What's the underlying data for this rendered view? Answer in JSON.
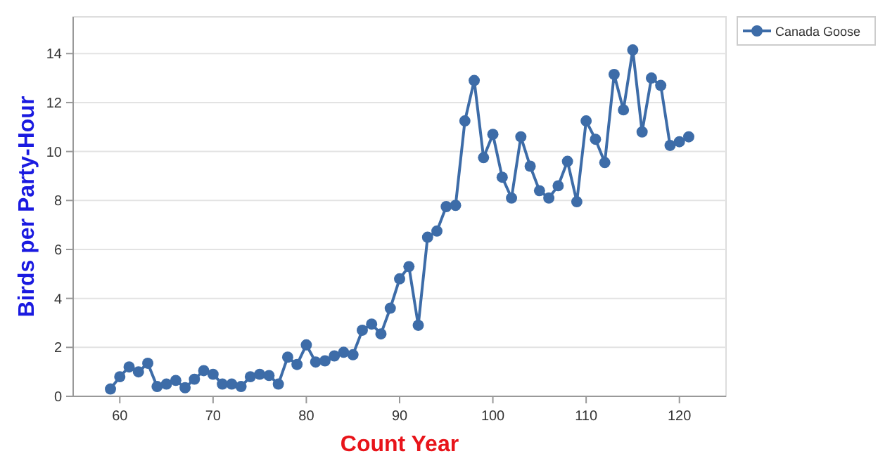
{
  "chart_data": {
    "type": "line",
    "xlabel": "Count Year",
    "ylabel": "Birds per Party-Hour",
    "x": [
      59,
      60,
      61,
      62,
      63,
      64,
      65,
      66,
      67,
      68,
      69,
      70,
      71,
      72,
      73,
      74,
      75,
      76,
      77,
      78,
      79,
      80,
      81,
      82,
      83,
      84,
      85,
      86,
      87,
      88,
      89,
      90,
      91,
      92,
      93,
      94,
      95,
      96,
      97,
      98,
      99,
      100,
      101,
      102,
      103,
      104,
      105,
      106,
      107,
      108,
      109,
      110,
      111,
      112,
      113,
      114,
      115,
      116,
      117,
      118,
      119,
      120,
      121
    ],
    "series": [
      {
        "name": "Canada Goose",
        "color": "#3d6ca8",
        "values": [
          0.3,
          0.8,
          1.2,
          1.0,
          1.35,
          0.4,
          0.5,
          0.65,
          0.35,
          0.7,
          1.05,
          0.9,
          0.5,
          0.5,
          0.4,
          0.8,
          0.9,
          0.85,
          0.5,
          1.6,
          1.3,
          2.1,
          1.4,
          1.45,
          1.65,
          1.8,
          1.7,
          2.7,
          2.95,
          2.55,
          3.6,
          4.8,
          5.3,
          2.9,
          6.5,
          6.75,
          7.75,
          7.8,
          11.25,
          12.9,
          9.75,
          10.7,
          8.95,
          8.1,
          10.6,
          9.4,
          8.4,
          8.1,
          8.6,
          9.6,
          7.95,
          11.25,
          10.5,
          9.55,
          13.15,
          11.7,
          14.15,
          10.8,
          13.0,
          12.7,
          10.25,
          10.4,
          10.6
        ]
      }
    ],
    "xlim": [
      55,
      125
    ],
    "xticks": [
      60,
      70,
      80,
      90,
      100,
      110,
      120
    ],
    "ylim": [
      0,
      15.5
    ],
    "yticks": [
      0,
      2,
      4,
      6,
      8,
      10,
      12,
      14
    ],
    "grid": "y",
    "legend": "top right",
    "marker": "circle",
    "line_style": "solid"
  }
}
